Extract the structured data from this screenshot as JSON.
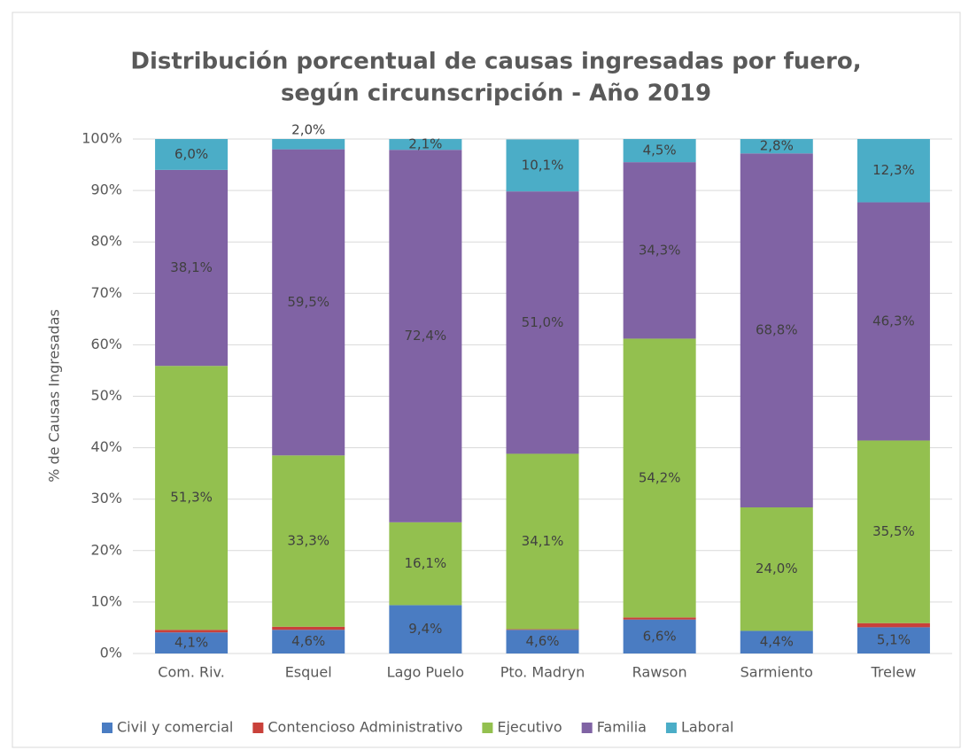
{
  "chart_data": {
    "type": "stacked_bar",
    "title": "Distribución porcentual de causas ingresadas por fuero,",
    "subtitle": "según circunscripción - Año 2019",
    "y_label": "% de Causas Ingresadas",
    "categories": [
      "Com. Riv.",
      "Esquel",
      "Lago Puelo",
      "Pto. Madryn",
      "Rawson",
      "Sarmiento",
      "Trelew"
    ],
    "series": [
      {
        "name": "Civil y comercial",
        "color": "#4a7cc2",
        "values": [
          4.1,
          4.6,
          9.4,
          4.6,
          6.6,
          4.4,
          5.1
        ],
        "value_labels": [
          "4,1%",
          "4,6%",
          "9,4%",
          "4,6%",
          "6,6%",
          "4,4%",
          "5,1%"
        ]
      },
      {
        "name": "Contencioso Administrativo",
        "color": "#c9413a",
        "values": [
          0.5,
          0.6,
          null,
          0.12,
          0.4,
          null,
          0.8
        ],
        "value_labels": [
          "0,5%",
          "0,6%",
          null,
          "0,12%",
          "0,4%",
          null,
          "0,8%"
        ]
      },
      {
        "name": "Ejecutivo",
        "color": "#93c04f",
        "values": [
          51.3,
          33.3,
          16.1,
          34.1,
          54.2,
          24.0,
          35.5
        ],
        "value_labels": [
          "51,3%",
          "33,3%",
          "16,1%",
          "34,1%",
          "54,2%",
          "24,0%",
          "35,5%"
        ]
      },
      {
        "name": "Familia",
        "color": "#8063a4",
        "values": [
          38.1,
          59.5,
          72.4,
          51.0,
          34.3,
          68.8,
          46.3
        ],
        "value_labels": [
          "38,1%",
          "59,5%",
          "72,4%",
          "51,0%",
          "34,3%",
          "68,8%",
          "46,3%"
        ]
      },
      {
        "name": "Laboral",
        "color": "#4badc7",
        "values": [
          6.0,
          2.0,
          2.1,
          10.1,
          4.5,
          2.8,
          12.3
        ],
        "value_labels": [
          "6,0%",
          "2,0%",
          "2,1%",
          "10,1%",
          "4,5%",
          "2,8%",
          "12,3%"
        ]
      }
    ],
    "ylim": [
      0,
      100
    ],
    "yticks": [
      {
        "value": 0,
        "label": "0%"
      },
      {
        "value": 10,
        "label": "10%"
      },
      {
        "value": 20,
        "label": "20%"
      },
      {
        "value": 30,
        "label": "30%"
      },
      {
        "value": 40,
        "label": "40%"
      },
      {
        "value": 50,
        "label": "50%"
      },
      {
        "value": 60,
        "label": "60%"
      },
      {
        "value": 70,
        "label": "70%"
      },
      {
        "value": 80,
        "label": "80%"
      },
      {
        "value": 90,
        "label": "90%"
      },
      {
        "value": 100,
        "label": "100%"
      }
    ],
    "grid": true,
    "legend": "bottom"
  }
}
